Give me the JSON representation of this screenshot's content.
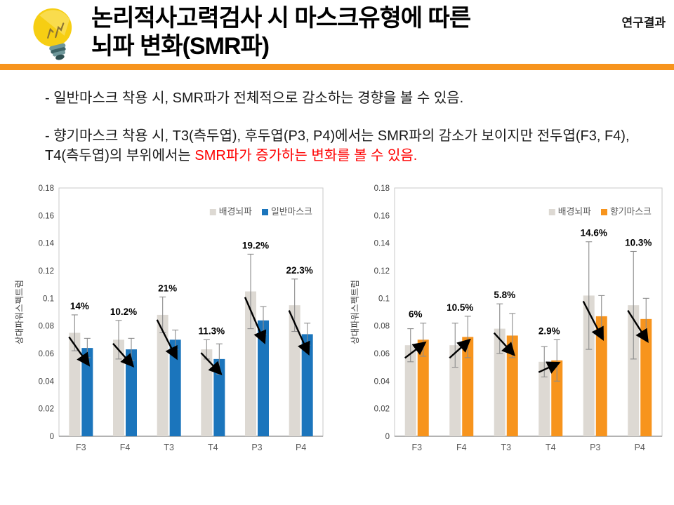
{
  "header": {
    "title_line1": "논리적사고력검사 시 마스크유형에 따른",
    "title_line2": "뇌파 변화(SMR파)",
    "corner_label": "연구결과"
  },
  "notes": {
    "para1": "- 일반마스크 착용 시, SMR파가 전체적으로 감소하는 경향을 볼 수 있음.",
    "para2_black": "- 향기마스크 착용 시, T3(측두엽), 후두엽(P3, P4)에서는 SMR파의 감소가 보이지만 전두엽(F3, F4), T4(측두엽)의 부위에서는 ",
    "para2_red": "SMR파가 증가하는 변화를 볼 수 있음."
  },
  "colors": {
    "accent_orange": "#F7941D",
    "bar_gray": "#DDD9D3",
    "bar_blue": "#1B75BC",
    "bar_orange": "#F7941D",
    "error_bar": "#8C8C8C",
    "red_text": "#FF0000"
  },
  "chart_data": [
    {
      "type": "bar",
      "title": "",
      "xlabel": "",
      "ylabel": "상대파워스펙트럼",
      "categories": [
        "F3",
        "F4",
        "T3",
        "T4",
        "P3",
        "P4"
      ],
      "ylim": [
        0,
        0.18
      ],
      "ytick_step": 0.02,
      "grid": false,
      "legend_position": "top-right",
      "series": [
        {
          "name": "배경뇌파",
          "color": "#DDD9D3",
          "values": [
            0.075,
            0.07,
            0.088,
            0.063,
            0.105,
            0.095
          ],
          "errors": [
            0.013,
            0.014,
            0.013,
            0.007,
            0.027,
            0.019
          ]
        },
        {
          "name": "일반마스크",
          "color": "#1B75BC",
          "values": [
            0.064,
            0.063,
            0.07,
            0.056,
            0.084,
            0.074
          ],
          "errors": [
            0.007,
            0.008,
            0.007,
            0.011,
            0.01,
            0.008
          ]
        }
      ],
      "change_labels": [
        "14%",
        "10.2%",
        "21%",
        "11.3%",
        "19.2%",
        "22.3%"
      ],
      "change_directions": [
        "down",
        "down",
        "down",
        "down",
        "down",
        "down"
      ]
    },
    {
      "type": "bar",
      "title": "",
      "xlabel": "",
      "ylabel": "상대파워스펙트럼",
      "categories": [
        "F3",
        "F4",
        "T3",
        "T4",
        "P3",
        "P4"
      ],
      "ylim": [
        0,
        0.18
      ],
      "ytick_step": 0.02,
      "grid": false,
      "legend_position": "top-right",
      "series": [
        {
          "name": "배경뇌파",
          "color": "#DDD9D3",
          "values": [
            0.066,
            0.066,
            0.078,
            0.054,
            0.102,
            0.095
          ],
          "errors": [
            0.012,
            0.016,
            0.018,
            0.011,
            0.039,
            0.039
          ]
        },
        {
          "name": "향기마스크",
          "color": "#F7941D",
          "values": [
            0.07,
            0.072,
            0.073,
            0.055,
            0.087,
            0.085
          ],
          "errors": [
            0.012,
            0.015,
            0.016,
            0.015,
            0.015,
            0.015
          ]
        }
      ],
      "change_labels": [
        "6%",
        "10.5%",
        "5.8%",
        "2.9%",
        "14.6%",
        "10.3%"
      ],
      "change_directions": [
        "up",
        "up",
        "down",
        "up",
        "down",
        "down"
      ]
    }
  ]
}
